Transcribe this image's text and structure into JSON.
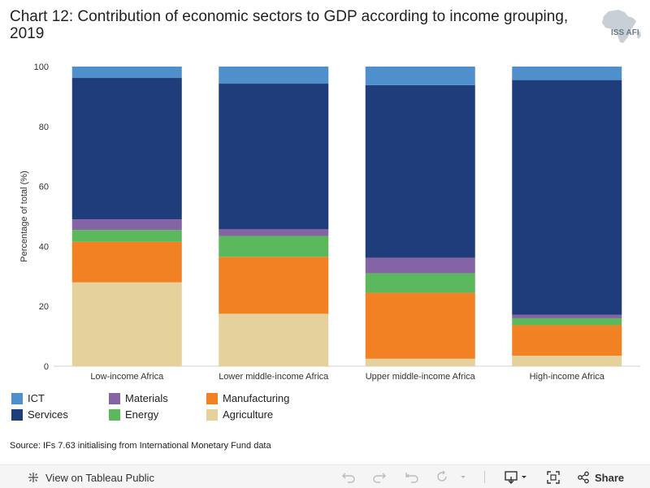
{
  "header": {
    "title": "Chart 12: Contribution of economic sectors to GDP according to income grouping, 2019",
    "logo_text": "ISS AFI"
  },
  "chart_data": {
    "type": "stacked-bar",
    "title": "Chart 12: Contribution of economic sectors to GDP according to income grouping, 2019",
    "ylabel": "Percentage of total (%)",
    "xlabel": "",
    "ylim": [
      0,
      100
    ],
    "yticks": [
      0,
      20,
      40,
      60,
      80,
      100
    ],
    "categories": [
      "Low-income Africa",
      "Lower middle-income Africa",
      "Upper middle-income Africa",
      "High-income Africa"
    ],
    "series": [
      {
        "name": "Agriculture",
        "color": "#e5d19c",
        "values": [
          28,
          17.5,
          2.5,
          3.5
        ]
      },
      {
        "name": "Manufacturing",
        "color": "#f28124",
        "values": [
          13.5,
          19,
          22,
          10.2
        ]
      },
      {
        "name": "Energy",
        "color": "#5cb85c",
        "values": [
          4,
          7,
          6.5,
          2.3
        ]
      },
      {
        "name": "Materials",
        "color": "#8464a4",
        "values": [
          3.5,
          2.2,
          5.2,
          1.2
        ]
      },
      {
        "name": "Services",
        "color": "#1f3d7a",
        "values": [
          47.2,
          48.6,
          57.6,
          78.3
        ]
      },
      {
        "name": "ICT",
        "color": "#4e8fcc",
        "values": [
          3.8,
          5.7,
          6.2,
          4.5
        ]
      }
    ],
    "legend_position": "bottom-left",
    "grid": false
  },
  "legend": {
    "items": [
      {
        "label": "ICT",
        "color": "#4e8fcc"
      },
      {
        "label": "Services",
        "color": "#1f3d7a"
      },
      {
        "label": "Materials",
        "color": "#8464a4"
      },
      {
        "label": "Energy",
        "color": "#5cb85c"
      },
      {
        "label": "Manufacturing",
        "color": "#f28124"
      },
      {
        "label": "Agriculture",
        "color": "#e5d19c"
      }
    ]
  },
  "source": "Source: IFs 7.63 initialising from International Monetary Fund data",
  "footer": {
    "view_label": "View on Tableau Public",
    "share_label": "Share"
  }
}
